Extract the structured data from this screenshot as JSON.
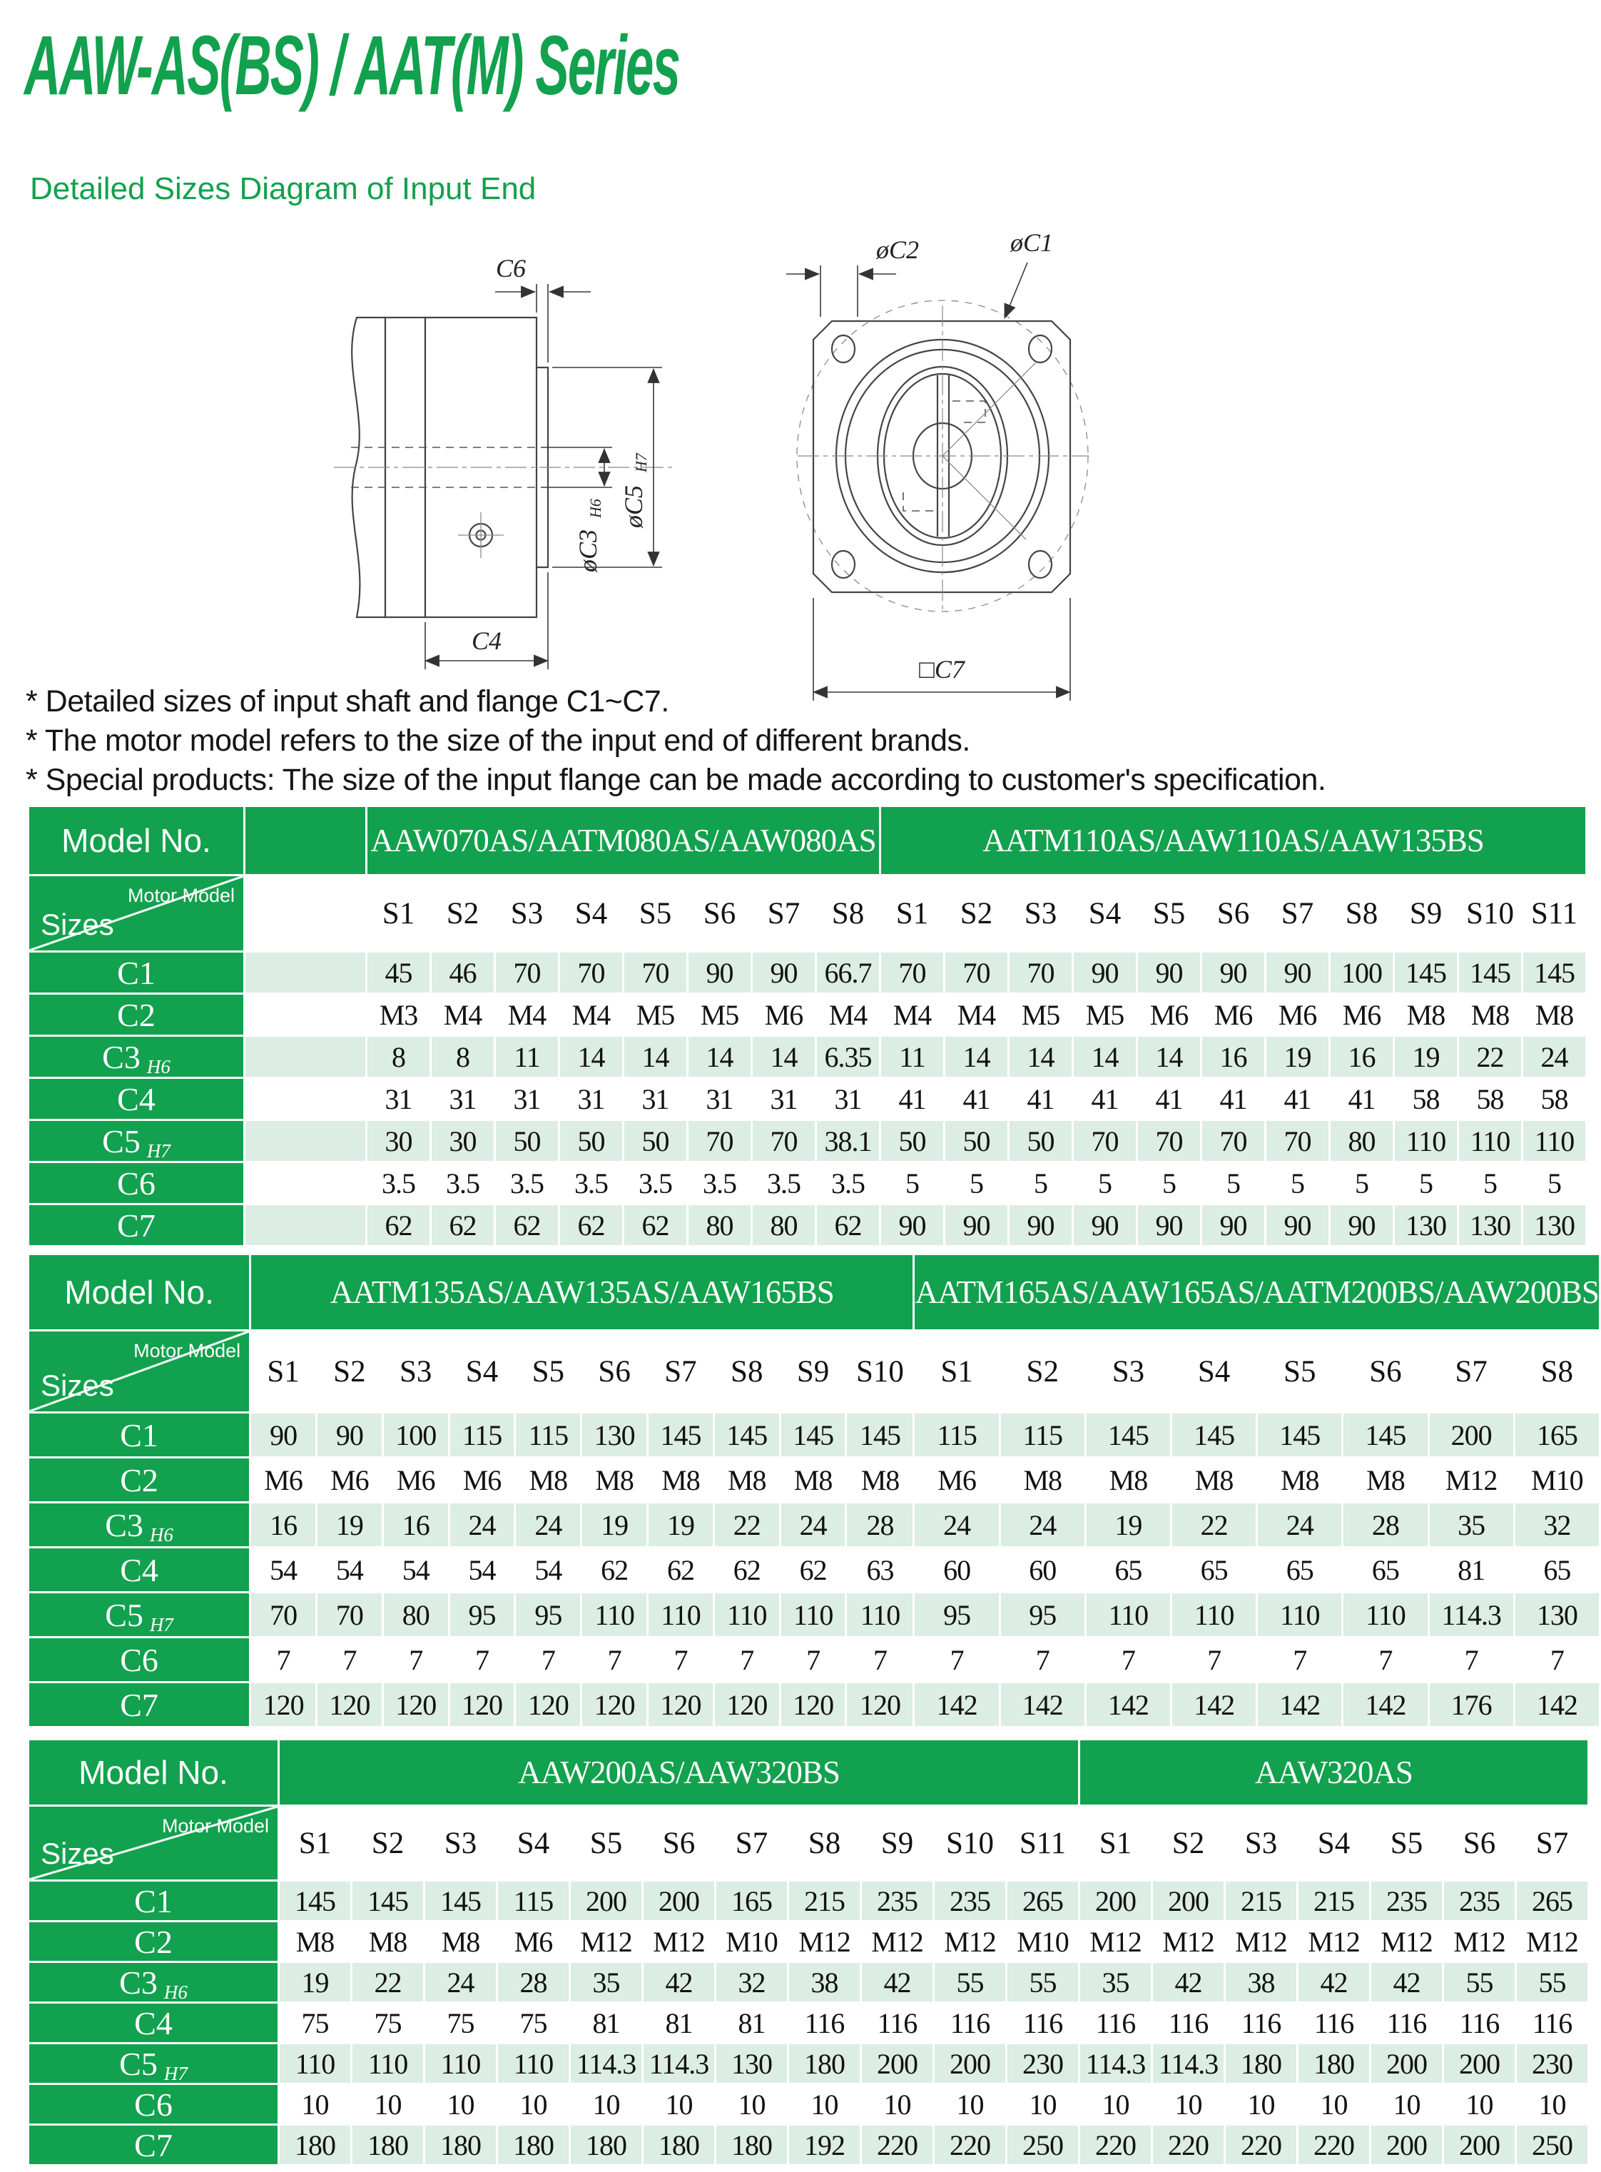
{
  "theme": {
    "green": "#12A14E",
    "stripe": "#DCEDE3",
    "ink": "#151515"
  },
  "title": "AAW-AS(BS) / AAT(M) Series",
  "subtitle": "Detailed Sizes Diagram of Input End",
  "notes": [
    "* Detailed sizes of input shaft and flange C1~C7.",
    "* The motor model refers to the size of the input end of different brands.",
    "* Special products: The size of the input flange can be made according to customer's specification."
  ],
  "diagram": {
    "side": {
      "c6": "C6",
      "c4": "C4",
      "c3": "øC3",
      "c3_tol": "H6",
      "c5": "øC5",
      "c5_tol": "H7"
    },
    "front": {
      "c2": "øC2",
      "c1": "øC1",
      "c7": "□C7"
    }
  },
  "tables": [
    {
      "model_label": "Model No.",
      "motor_label": "Motor Model",
      "sizes_label": "Sizes",
      "spacer": true,
      "groups": [
        {
          "label": "AAW070AS/AATM080AS/AAW080AS",
          "cols": [
            "S1",
            "S2",
            "S3",
            "S4",
            "S5",
            "S6",
            "S7",
            "S8"
          ]
        },
        {
          "label": "AATM110AS/AAW110AS/AAW135BS",
          "cols": [
            "S1",
            "S2",
            "S3",
            "S4",
            "S5",
            "S6",
            "S7",
            "S8",
            "S9",
            "S10",
            "S11"
          ]
        }
      ],
      "rows": [
        {
          "label": "C1",
          "tol": "",
          "values": [
            "45",
            "46",
            "70",
            "70",
            "70",
            "90",
            "90",
            "66.7",
            "70",
            "70",
            "70",
            "90",
            "90",
            "90",
            "90",
            "100",
            "145",
            "145",
            "145"
          ]
        },
        {
          "label": "C2",
          "tol": "",
          "values": [
            "M3",
            "M4",
            "M4",
            "M4",
            "M5",
            "M5",
            "M6",
            "M4",
            "M4",
            "M4",
            "M5",
            "M5",
            "M6",
            "M6",
            "M6",
            "M6",
            "M8",
            "M8",
            "M8"
          ]
        },
        {
          "label": "C3",
          "tol": "H6",
          "values": [
            "8",
            "8",
            "11",
            "14",
            "14",
            "14",
            "14",
            "6.35",
            "11",
            "14",
            "14",
            "14",
            "14",
            "16",
            "19",
            "16",
            "19",
            "22",
            "24"
          ]
        },
        {
          "label": "C4",
          "tol": "",
          "values": [
            "31",
            "31",
            "31",
            "31",
            "31",
            "31",
            "31",
            "31",
            "41",
            "41",
            "41",
            "41",
            "41",
            "41",
            "41",
            "41",
            "58",
            "58",
            "58"
          ]
        },
        {
          "label": "C5",
          "tol": "H7",
          "values": [
            "30",
            "30",
            "50",
            "50",
            "50",
            "70",
            "70",
            "38.1",
            "50",
            "50",
            "50",
            "70",
            "70",
            "70",
            "70",
            "80",
            "110",
            "110",
            "110"
          ]
        },
        {
          "label": "C6",
          "tol": "",
          "values": [
            "3.5",
            "3.5",
            "3.5",
            "3.5",
            "3.5",
            "3.5",
            "3.5",
            "3.5",
            "5",
            "5",
            "5",
            "5",
            "5",
            "5",
            "5",
            "5",
            "5",
            "5",
            "5"
          ]
        },
        {
          "label": "C7",
          "tol": "",
          "values": [
            "62",
            "62",
            "62",
            "62",
            "62",
            "80",
            "80",
            "62",
            "90",
            "90",
            "90",
            "90",
            "90",
            "90",
            "90",
            "90",
            "130",
            "130",
            "130"
          ]
        }
      ]
    },
    {
      "model_label": "Model No.",
      "motor_label": "Motor Model",
      "sizes_label": "Sizes",
      "spacer": false,
      "groups": [
        {
          "label": "AATM135AS/AAW135AS/AAW165BS",
          "cols": [
            "S1",
            "S2",
            "S3",
            "S4",
            "S5",
            "S6",
            "S7",
            "S8",
            "S9",
            "S10"
          ]
        },
        {
          "label": "AATM165AS/AAW165AS/AATM200BS/AAW200BS",
          "cols": [
            "S1",
            "S2",
            "S3",
            "S4",
            "S5",
            "S6",
            "S7",
            "S8"
          ]
        }
      ],
      "rows": [
        {
          "label": "C1",
          "tol": "",
          "values": [
            "90",
            "90",
            "100",
            "115",
            "115",
            "130",
            "145",
            "145",
            "145",
            "145",
            "115",
            "115",
            "145",
            "145",
            "145",
            "145",
            "200",
            "165"
          ]
        },
        {
          "label": "C2",
          "tol": "",
          "values": [
            "M6",
            "M6",
            "M6",
            "M6",
            "M8",
            "M8",
            "M8",
            "M8",
            "M8",
            "M8",
            "M6",
            "M8",
            "M8",
            "M8",
            "M8",
            "M8",
            "M12",
            "M10"
          ]
        },
        {
          "label": "C3",
          "tol": "H6",
          "values": [
            "16",
            "19",
            "16",
            "24",
            "24",
            "19",
            "19",
            "22",
            "24",
            "28",
            "24",
            "24",
            "19",
            "22",
            "24",
            "28",
            "35",
            "32"
          ]
        },
        {
          "label": "C4",
          "tol": "",
          "values": [
            "54",
            "54",
            "54",
            "54",
            "54",
            "62",
            "62",
            "62",
            "62",
            "63",
            "60",
            "60",
            "65",
            "65",
            "65",
            "65",
            "81",
            "65"
          ]
        },
        {
          "label": "C5",
          "tol": "H7",
          "values": [
            "70",
            "70",
            "80",
            "95",
            "95",
            "110",
            "110",
            "110",
            "110",
            "110",
            "95",
            "95",
            "110",
            "110",
            "110",
            "110",
            "114.3",
            "130"
          ]
        },
        {
          "label": "C6",
          "tol": "",
          "values": [
            "7",
            "7",
            "7",
            "7",
            "7",
            "7",
            "7",
            "7",
            "7",
            "7",
            "7",
            "7",
            "7",
            "7",
            "7",
            "7",
            "7",
            "7"
          ]
        },
        {
          "label": "C7",
          "tol": "",
          "values": [
            "120",
            "120",
            "120",
            "120",
            "120",
            "120",
            "120",
            "120",
            "120",
            "120",
            "142",
            "142",
            "142",
            "142",
            "142",
            "142",
            "176",
            "142"
          ]
        }
      ]
    },
    {
      "model_label": "Model No.",
      "motor_label": "Motor Model",
      "sizes_label": "Sizes",
      "spacer": false,
      "groups": [
        {
          "label": "AAW200AS/AAW320BS",
          "cols": [
            "S1",
            "S2",
            "S3",
            "S4",
            "S5",
            "S6",
            "S7",
            "S8",
            "S9",
            "S10",
            "S11"
          ]
        },
        {
          "label": "AAW320AS",
          "cols": [
            "S1",
            "S2",
            "S3",
            "S4",
            "S5",
            "S6",
            "S7"
          ]
        }
      ],
      "rows": [
        {
          "label": "C1",
          "tol": "",
          "values": [
            "145",
            "145",
            "145",
            "115",
            "200",
            "200",
            "165",
            "215",
            "235",
            "235",
            "265",
            "200",
            "200",
            "215",
            "215",
            "235",
            "235",
            "265"
          ]
        },
        {
          "label": "C2",
          "tol": "",
          "values": [
            "M8",
            "M8",
            "M8",
            "M6",
            "M12",
            "M12",
            "M10",
            "M12",
            "M12",
            "M12",
            "M10",
            "M12",
            "M12",
            "M12",
            "M12",
            "M12",
            "M12",
            "M12"
          ]
        },
        {
          "label": "C3",
          "tol": "H6",
          "values": [
            "19",
            "22",
            "24",
            "28",
            "35",
            "42",
            "32",
            "38",
            "42",
            "55",
            "55",
            "35",
            "42",
            "38",
            "42",
            "42",
            "55",
            "55"
          ]
        },
        {
          "label": "C4",
          "tol": "",
          "values": [
            "75",
            "75",
            "75",
            "75",
            "81",
            "81",
            "81",
            "116",
            "116",
            "116",
            "116",
            "116",
            "116",
            "116",
            "116",
            "116",
            "116",
            "116"
          ]
        },
        {
          "label": "C5",
          "tol": "H7",
          "values": [
            "110",
            "110",
            "110",
            "110",
            "114.3",
            "114.3",
            "130",
            "180",
            "200",
            "200",
            "230",
            "114.3",
            "114.3",
            "180",
            "180",
            "200",
            "200",
            "230"
          ]
        },
        {
          "label": "C6",
          "tol": "",
          "values": [
            "10",
            "10",
            "10",
            "10",
            "10",
            "10",
            "10",
            "10",
            "10",
            "10",
            "10",
            "10",
            "10",
            "10",
            "10",
            "10",
            "10",
            "10"
          ]
        },
        {
          "label": "C7",
          "tol": "",
          "values": [
            "180",
            "180",
            "180",
            "180",
            "180",
            "180",
            "180",
            "192",
            "220",
            "220",
            "250",
            "220",
            "220",
            "220",
            "220",
            "200",
            "200",
            "250"
          ]
        }
      ]
    }
  ]
}
